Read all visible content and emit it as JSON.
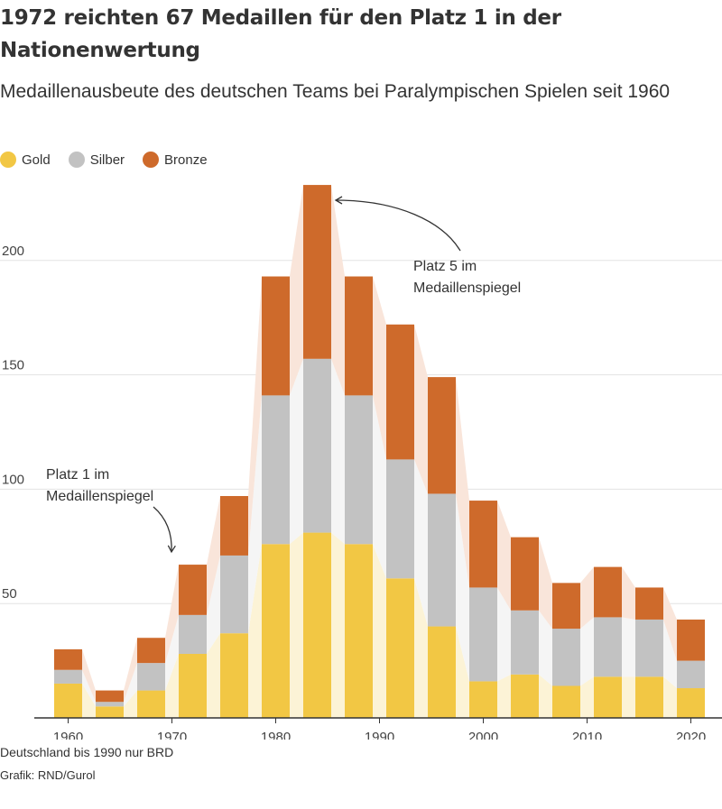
{
  "title": "1972 reichten 67 Medaillen für den Platz 1 in der Nationenwertung",
  "subtitle": "Medaillenausbeute des deutschen Teams bei Paralympischen Spielen seit 1960",
  "legend": [
    {
      "label": "Gold",
      "color": "#f2c744"
    },
    {
      "label": "Silber",
      "color": "#c2c2c2"
    },
    {
      "label": "Bronze",
      "color": "#ce6a2b"
    }
  ],
  "footer": {
    "note": "Deutschland bis 1990 nur BRD",
    "credit": "Grafik: RND/Gurol"
  },
  "chart_data": {
    "type": "bar",
    "stacked": true,
    "categories": [
      1960,
      1964,
      1968,
      1972,
      1976,
      1980,
      1984,
      1988,
      1992,
      1996,
      2000,
      2004,
      2008,
      2012,
      2016,
      2020
    ],
    "series": [
      {
        "name": "Gold",
        "color": "#f2c744",
        "values": [
          15,
          5,
          12,
          28,
          37,
          76,
          81,
          76,
          61,
          40,
          16,
          19,
          14,
          18,
          18,
          13
        ]
      },
      {
        "name": "Silber",
        "color": "#c2c2c2",
        "values": [
          6,
          2,
          12,
          17,
          34,
          65,
          76,
          65,
          52,
          58,
          41,
          28,
          25,
          26,
          25,
          12
        ]
      },
      {
        "name": "Bronze",
        "color": "#ce6a2b",
        "values": [
          9,
          5,
          11,
          22,
          26,
          52,
          76,
          52,
          59,
          51,
          38,
          32,
          20,
          22,
          14,
          18
        ]
      }
    ],
    "ylim": [
      0,
      235
    ],
    "yticks": [
      50,
      100,
      150,
      200
    ],
    "xlim": [
      1957,
      2023
    ],
    "xticks": [
      1960,
      1970,
      1980,
      1990,
      2000,
      2010,
      2020
    ],
    "grid": true,
    "legend_position": "top-left",
    "annotations": [
      {
        "text_lines": [
          "Platz 1 im",
          "Medaillenspiegel"
        ],
        "target_year": 1972,
        "target_value": 67
      },
      {
        "text_lines": [
          "Platz 5 im",
          "Medaillenspiegel"
        ],
        "target_year": 1984,
        "target_value": 233
      }
    ]
  }
}
